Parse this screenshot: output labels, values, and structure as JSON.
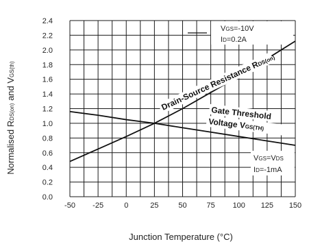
{
  "chart_data": {
    "type": "line",
    "xlabel": "Junction Temperature (°C)",
    "ylabel_parts": {
      "a": "Normalised R",
      "a_sub": "DS(on)",
      "b": " and V",
      "b_sub": "GS(th)"
    },
    "xlim": [
      -50,
      150
    ],
    "ylim": [
      0,
      2.4
    ],
    "x_ticks": [
      "-50",
      "-25",
      "0",
      "25",
      "50",
      "75",
      "100",
      "125",
      "150"
    ],
    "y_ticks": [
      "0.0",
      "0.2",
      "0.4",
      "0.6",
      "0.8",
      "1.0",
      "1.2",
      "1.4",
      "1.6",
      "1.8",
      "2.0",
      "2.2",
      "2.4"
    ],
    "grid": true,
    "series": [
      {
        "name": "Drain-Source Resistance R",
        "name_sub": "DS(on)",
        "x": [
          -50,
          -25,
          0,
          25,
          50,
          75,
          100,
          125,
          150
        ],
        "values": [
          0.48,
          0.65,
          0.82,
          1.0,
          1.2,
          1.42,
          1.64,
          1.88,
          2.12
        ]
      },
      {
        "name": "Gate Threshold",
        "name_line2": "Voltage V",
        "name_sub": "GS(TH)",
        "x": [
          -50,
          -25,
          0,
          25,
          50,
          75,
          100,
          125,
          150
        ],
        "values": [
          1.16,
          1.11,
          1.05,
          1.0,
          0.94,
          0.88,
          0.82,
          0.76,
          0.7
        ]
      }
    ],
    "annotations": {
      "rds": {
        "vgs_pre": "V",
        "vgs_sub": "GS",
        "vgs_value": "=-10V",
        "id_pre": "I",
        "id_sub": "D",
        "id_value": "=0.2A"
      },
      "vgs": {
        "vgs_pre": "V",
        "vgs_sub": "GS",
        "vgs_value": "=V",
        "vds_sub": "DS",
        "id_pre": "I",
        "id_sub": "D",
        "id_value": "=-1mA"
      }
    }
  }
}
